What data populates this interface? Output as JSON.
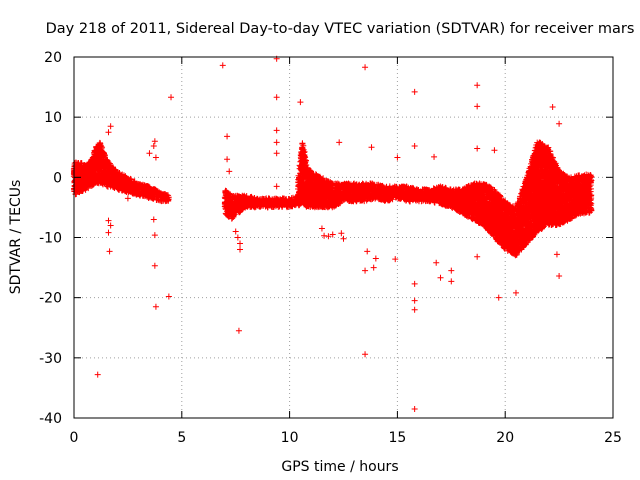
{
  "chart_data": {
    "type": "scatter",
    "title": "Day 218 of 2011, Sidereal Day-to-day VTEC variation (SDTVAR) for receiver mars",
    "xlabel": "GPS time / hours",
    "ylabel": "SDTVAR / TECUs",
    "xlim": [
      0,
      25
    ],
    "ylim": [
      -40,
      20
    ],
    "x_ticks": [
      0,
      5,
      10,
      15,
      20,
      25
    ],
    "y_ticks": [
      -40,
      -30,
      -20,
      -10,
      0,
      10,
      20
    ],
    "grid": true,
    "marker": "+",
    "color": "#ff0000",
    "series": [
      {
        "name": "SDTVAR",
        "dense_segments": [
          {
            "x": [
              0.0,
              0.3,
              0.6,
              0.8,
              1.0,
              1.2,
              1.5,
              2.0,
              2.5,
              3.0,
              3.5,
              4.0,
              4.4
            ],
            "y_low": [
              -3,
              -2.5,
              -2,
              -1.5,
              -1,
              -1,
              -1.5,
              -2,
              -2.5,
              -3,
              -3.5,
              -4,
              -4
            ],
            "y_high": [
              2.5,
              2.5,
              2,
              3,
              5,
              6,
              3,
              1,
              0,
              -1,
              -1.5,
              -2.5,
              -3
            ]
          },
          {
            "x": [
              7.0,
              7.3,
              7.6,
              8.0,
              8.5,
              9.0,
              9.5,
              10.0,
              10.4
            ],
            "y_low": [
              -6,
              -7,
              -6,
              -5,
              -5,
              -5,
              -5,
              -5,
              -4.5
            ],
            "y_high": [
              -2,
              -3,
              -3,
              -3,
              -3.5,
              -3.5,
              -3.5,
              -3.5,
              -3
            ]
          },
          {
            "x": [
              10.4,
              10.6,
              10.8,
              11.0,
              11.5,
              12.0,
              12.5,
              13.0,
              13.5,
              14.0,
              14.5,
              15.0,
              15.5,
              16.0,
              16.5,
              17.0,
              17.5,
              18.0,
              18.5,
              19.0,
              19.5,
              20.0,
              20.5,
              21.0,
              21.5,
              22.0,
              22.5,
              23.0,
              23.5,
              24.0
            ],
            "y_low": [
              -5,
              -4,
              -5,
              -5,
              -5,
              -5,
              -4,
              -4,
              -4,
              -3.5,
              -4,
              -3.5,
              -4,
              -4,
              -4,
              -4.5,
              -5,
              -6,
              -7,
              -8,
              -10,
              -12,
              -13,
              -11,
              -9,
              -8,
              -8,
              -7,
              -6,
              -6
            ],
            "y_high": [
              0,
              6,
              2,
              1,
              0,
              -1,
              -1,
              -1,
              -1,
              -1,
              -1.5,
              -1.5,
              -1.5,
              -2,
              -2,
              -1.5,
              -2,
              -2,
              -1,
              -1,
              -2,
              -4,
              -5,
              0,
              6,
              5,
              1,
              0,
              0.5,
              0.5
            ]
          }
        ],
        "outliers": [
          {
            "x": 1.1,
            "y": -32.8
          },
          {
            "x": 1.3,
            "y": 5
          },
          {
            "x": 1.6,
            "y": 7.5
          },
          {
            "x": 1.7,
            "y": 8.5
          },
          {
            "x": 1.6,
            "y": -7.2
          },
          {
            "x": 1.7,
            "y": -8
          },
          {
            "x": 1.65,
            "y": -12.3
          },
          {
            "x": 1.6,
            "y": -9.2
          },
          {
            "x": 2.5,
            "y": -3.5
          },
          {
            "x": 3.5,
            "y": 4
          },
          {
            "x": 3.7,
            "y": 5.2
          },
          {
            "x": 3.75,
            "y": 6
          },
          {
            "x": 3.8,
            "y": 3.3
          },
          {
            "x": 3.7,
            "y": -7
          },
          {
            "x": 3.75,
            "y": -9.6
          },
          {
            "x": 3.75,
            "y": -14.7
          },
          {
            "x": 3.8,
            "y": -21.5
          },
          {
            "x": 4.4,
            "y": -19.8
          },
          {
            "x": 4.5,
            "y": 13.3
          },
          {
            "x": 6.9,
            "y": 18.6
          },
          {
            "x": 7.1,
            "y": 6.8
          },
          {
            "x": 7.1,
            "y": 3
          },
          {
            "x": 7.2,
            "y": 1
          },
          {
            "x": 7.5,
            "y": -9
          },
          {
            "x": 7.6,
            "y": -10
          },
          {
            "x": 7.7,
            "y": -11
          },
          {
            "x": 7.7,
            "y": -12
          },
          {
            "x": 7.65,
            "y": -25.5
          },
          {
            "x": 9.4,
            "y": 19.7
          },
          {
            "x": 9.4,
            "y": 13.3
          },
          {
            "x": 9.4,
            "y": 7.8
          },
          {
            "x": 9.4,
            "y": 5.8
          },
          {
            "x": 9.4,
            "y": 4
          },
          {
            "x": 9.4,
            "y": -1.5
          },
          {
            "x": 10.5,
            "y": 12.5
          },
          {
            "x": 11.5,
            "y": -8.5
          },
          {
            "x": 11.6,
            "y": -9.7
          },
          {
            "x": 11.8,
            "y": -9.8
          },
          {
            "x": 12.0,
            "y": -9.5
          },
          {
            "x": 12.3,
            "y": 5.8
          },
          {
            "x": 12.4,
            "y": -9.3
          },
          {
            "x": 12.5,
            "y": -10.2
          },
          {
            "x": 13.5,
            "y": 18.3
          },
          {
            "x": 13.5,
            "y": -29.4
          },
          {
            "x": 13.5,
            "y": -15.5
          },
          {
            "x": 13.6,
            "y": -12.3
          },
          {
            "x": 13.8,
            "y": 5
          },
          {
            "x": 13.9,
            "y": -15
          },
          {
            "x": 14.0,
            "y": -13.5
          },
          {
            "x": 14.9,
            "y": -13.6
          },
          {
            "x": 15.0,
            "y": 3.3
          },
          {
            "x": 15.8,
            "y": 14.2
          },
          {
            "x": 15.8,
            "y": 5.2
          },
          {
            "x": 15.8,
            "y": -17.7
          },
          {
            "x": 15.8,
            "y": -20.5
          },
          {
            "x": 15.8,
            "y": -22
          },
          {
            "x": 15.8,
            "y": -38.5
          },
          {
            "x": 16.7,
            "y": 3.4
          },
          {
            "x": 16.8,
            "y": -14.2
          },
          {
            "x": 17.0,
            "y": -16.7
          },
          {
            "x": 17.5,
            "y": -15.5
          },
          {
            "x": 17.5,
            "y": -17.3
          },
          {
            "x": 18.7,
            "y": 15.3
          },
          {
            "x": 18.7,
            "y": 11.8
          },
          {
            "x": 18.7,
            "y": 4.8
          },
          {
            "x": 18.7,
            "y": -13.2
          },
          {
            "x": 19.5,
            "y": 4.5
          },
          {
            "x": 19.7,
            "y": -20
          },
          {
            "x": 20.5,
            "y": -19.2
          },
          {
            "x": 22.2,
            "y": 11.7
          },
          {
            "x": 22.5,
            "y": 8.9
          },
          {
            "x": 22.4,
            "y": -12.8
          },
          {
            "x": 22.5,
            "y": -16.4
          }
        ]
      }
    ]
  }
}
